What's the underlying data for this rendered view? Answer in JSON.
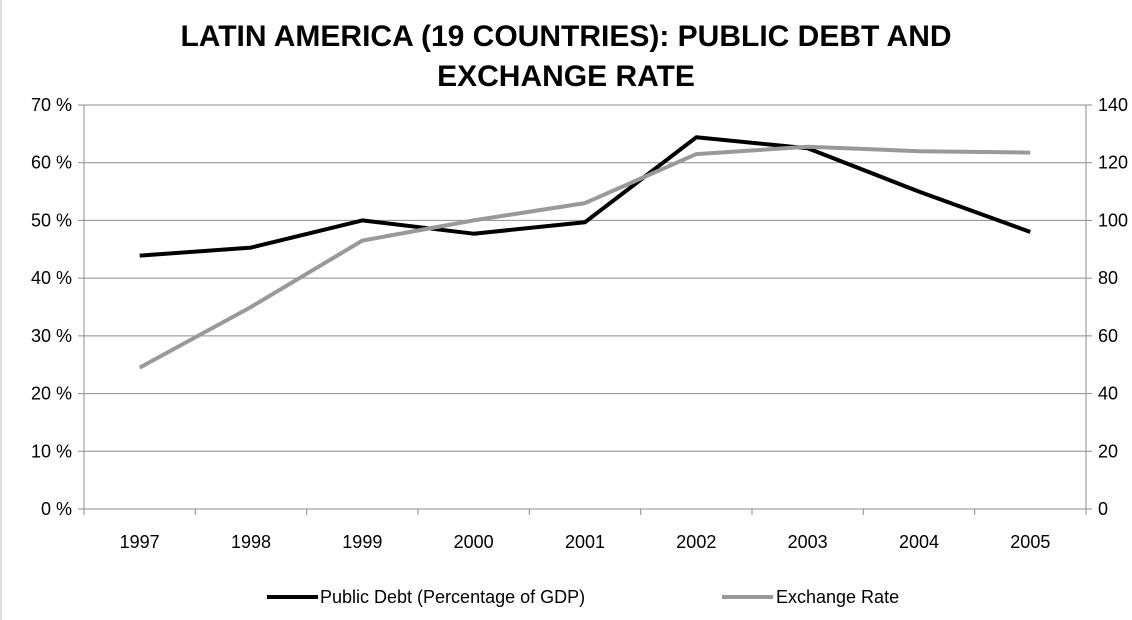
{
  "chart_data": {
    "type": "line",
    "title_lines": [
      "LATIN AMERICA (19 COUNTRIES): PUBLIC DEBT AND",
      "EXCHANGE RATE"
    ],
    "x": [
      "1997",
      "1998",
      "1999",
      "2000",
      "2001",
      "2002",
      "2003",
      "2004",
      "2005"
    ],
    "y_left": {
      "range": [
        0,
        70
      ],
      "ticks": [
        0,
        10,
        20,
        30,
        40,
        50,
        60,
        70
      ],
      "tick_labels": [
        "0 %",
        "10 %",
        "20 %",
        "30 %",
        "40 %",
        "50 %",
        "60 %",
        "70 %"
      ]
    },
    "y_right": {
      "range": [
        0,
        140
      ],
      "ticks": [
        0,
        20,
        40,
        60,
        80,
        100,
        120,
        140
      ],
      "tick_labels": [
        "0",
        "20",
        "40",
        "60",
        "80",
        "100",
        "120",
        "140"
      ]
    },
    "series": [
      {
        "name": "Public Debt (Percentage of GDP)",
        "axis": "left",
        "color": "#000000",
        "values": [
          43.9,
          45.3,
          50.0,
          47.7,
          49.7,
          64.4,
          62.5,
          55.0,
          48.0
        ]
      },
      {
        "name": "Exchange Rate",
        "axis": "right",
        "color": "#999999",
        "values": [
          49,
          70,
          93,
          100,
          106,
          123,
          125.5,
          124,
          123.5
        ]
      }
    ],
    "grid": "horizontal",
    "legend_position": "bottom"
  }
}
